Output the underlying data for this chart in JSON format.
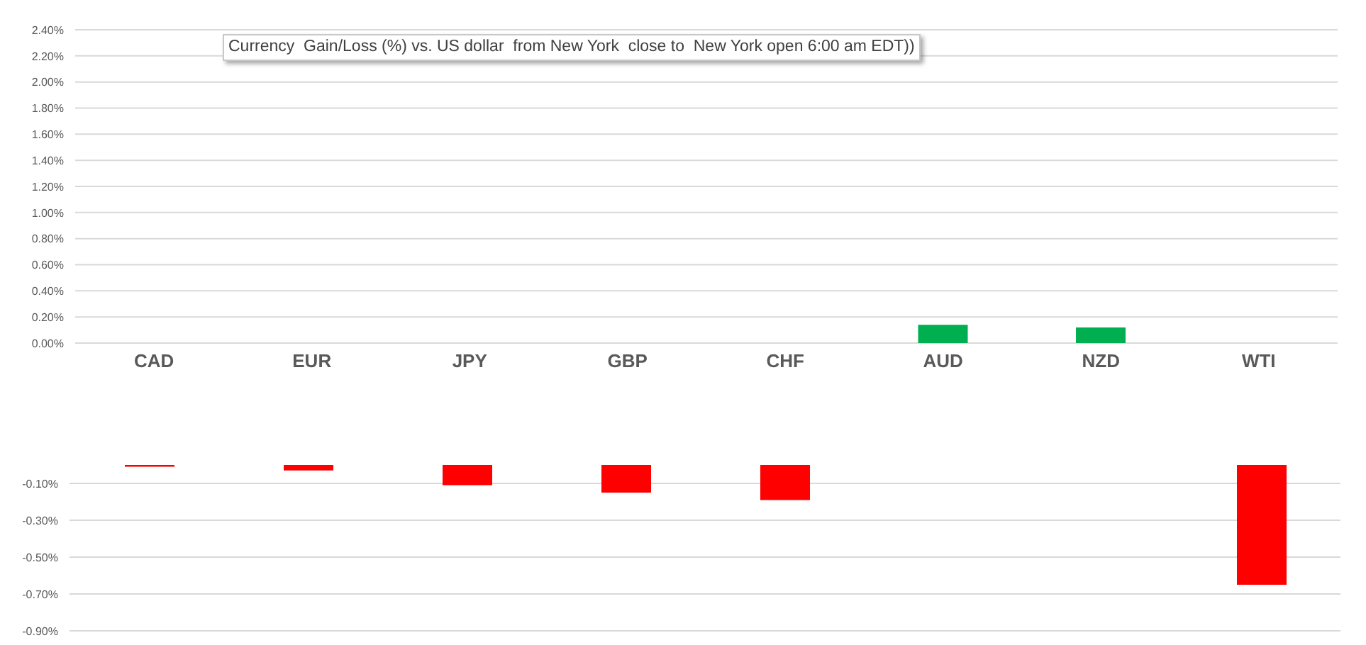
{
  "chart_data": [
    {
      "type": "bar",
      "title": "Currency  Gain/Loss (%) vs. US dollar  from New York  close to  New York open 6:00 am EDT))",
      "categories": [
        "CAD",
        "EUR",
        "JPY",
        "GBP",
        "CHF",
        "AUD",
        "NZD",
        "WTI"
      ],
      "values": [
        null,
        null,
        null,
        null,
        null,
        0.14,
        0.12,
        null
      ],
      "color": "#00b050",
      "ylim": [
        0,
        2.4
      ],
      "yticks": [
        {
          "value": 0,
          "label": "0.00%"
        },
        {
          "value": 0.2,
          "label": "0.20%"
        },
        {
          "value": 0.4,
          "label": "0.40%"
        },
        {
          "value": 0.6,
          "label": "0.60%"
        },
        {
          "value": 0.8,
          "label": "0.80%"
        },
        {
          "value": 1.0,
          "label": "1.00%"
        },
        {
          "value": 1.2,
          "label": "1.20%"
        },
        {
          "value": 1.4,
          "label": "1.40%"
        },
        {
          "value": 1.6,
          "label": "1.60%"
        },
        {
          "value": 1.8,
          "label": "1.80%"
        },
        {
          "value": 2.0,
          "label": "2.00%"
        },
        {
          "value": 2.2,
          "label": "2.20%"
        },
        {
          "value": 2.4,
          "label": "2.40%"
        }
      ],
      "grid": "y"
    },
    {
      "type": "bar",
      "categories": [
        null,
        null,
        null,
        null,
        null,
        null,
        null,
        null
      ],
      "values": [
        -0.01,
        -0.03,
        -0.11,
        -0.15,
        -0.19,
        null,
        null,
        -0.65
      ],
      "color": "#ff0000",
      "ylim": [
        -0.9,
        0
      ],
      "yticks": [
        {
          "value": -0.1,
          "label": "-0.10%"
        },
        {
          "value": -0.3,
          "label": "-0.30%"
        },
        {
          "value": -0.5,
          "label": "-0.50%"
        },
        {
          "value": -0.7,
          "label": "-0.70%"
        },
        {
          "value": -0.9,
          "label": "-0.90%"
        }
      ],
      "grid": "y"
    }
  ]
}
